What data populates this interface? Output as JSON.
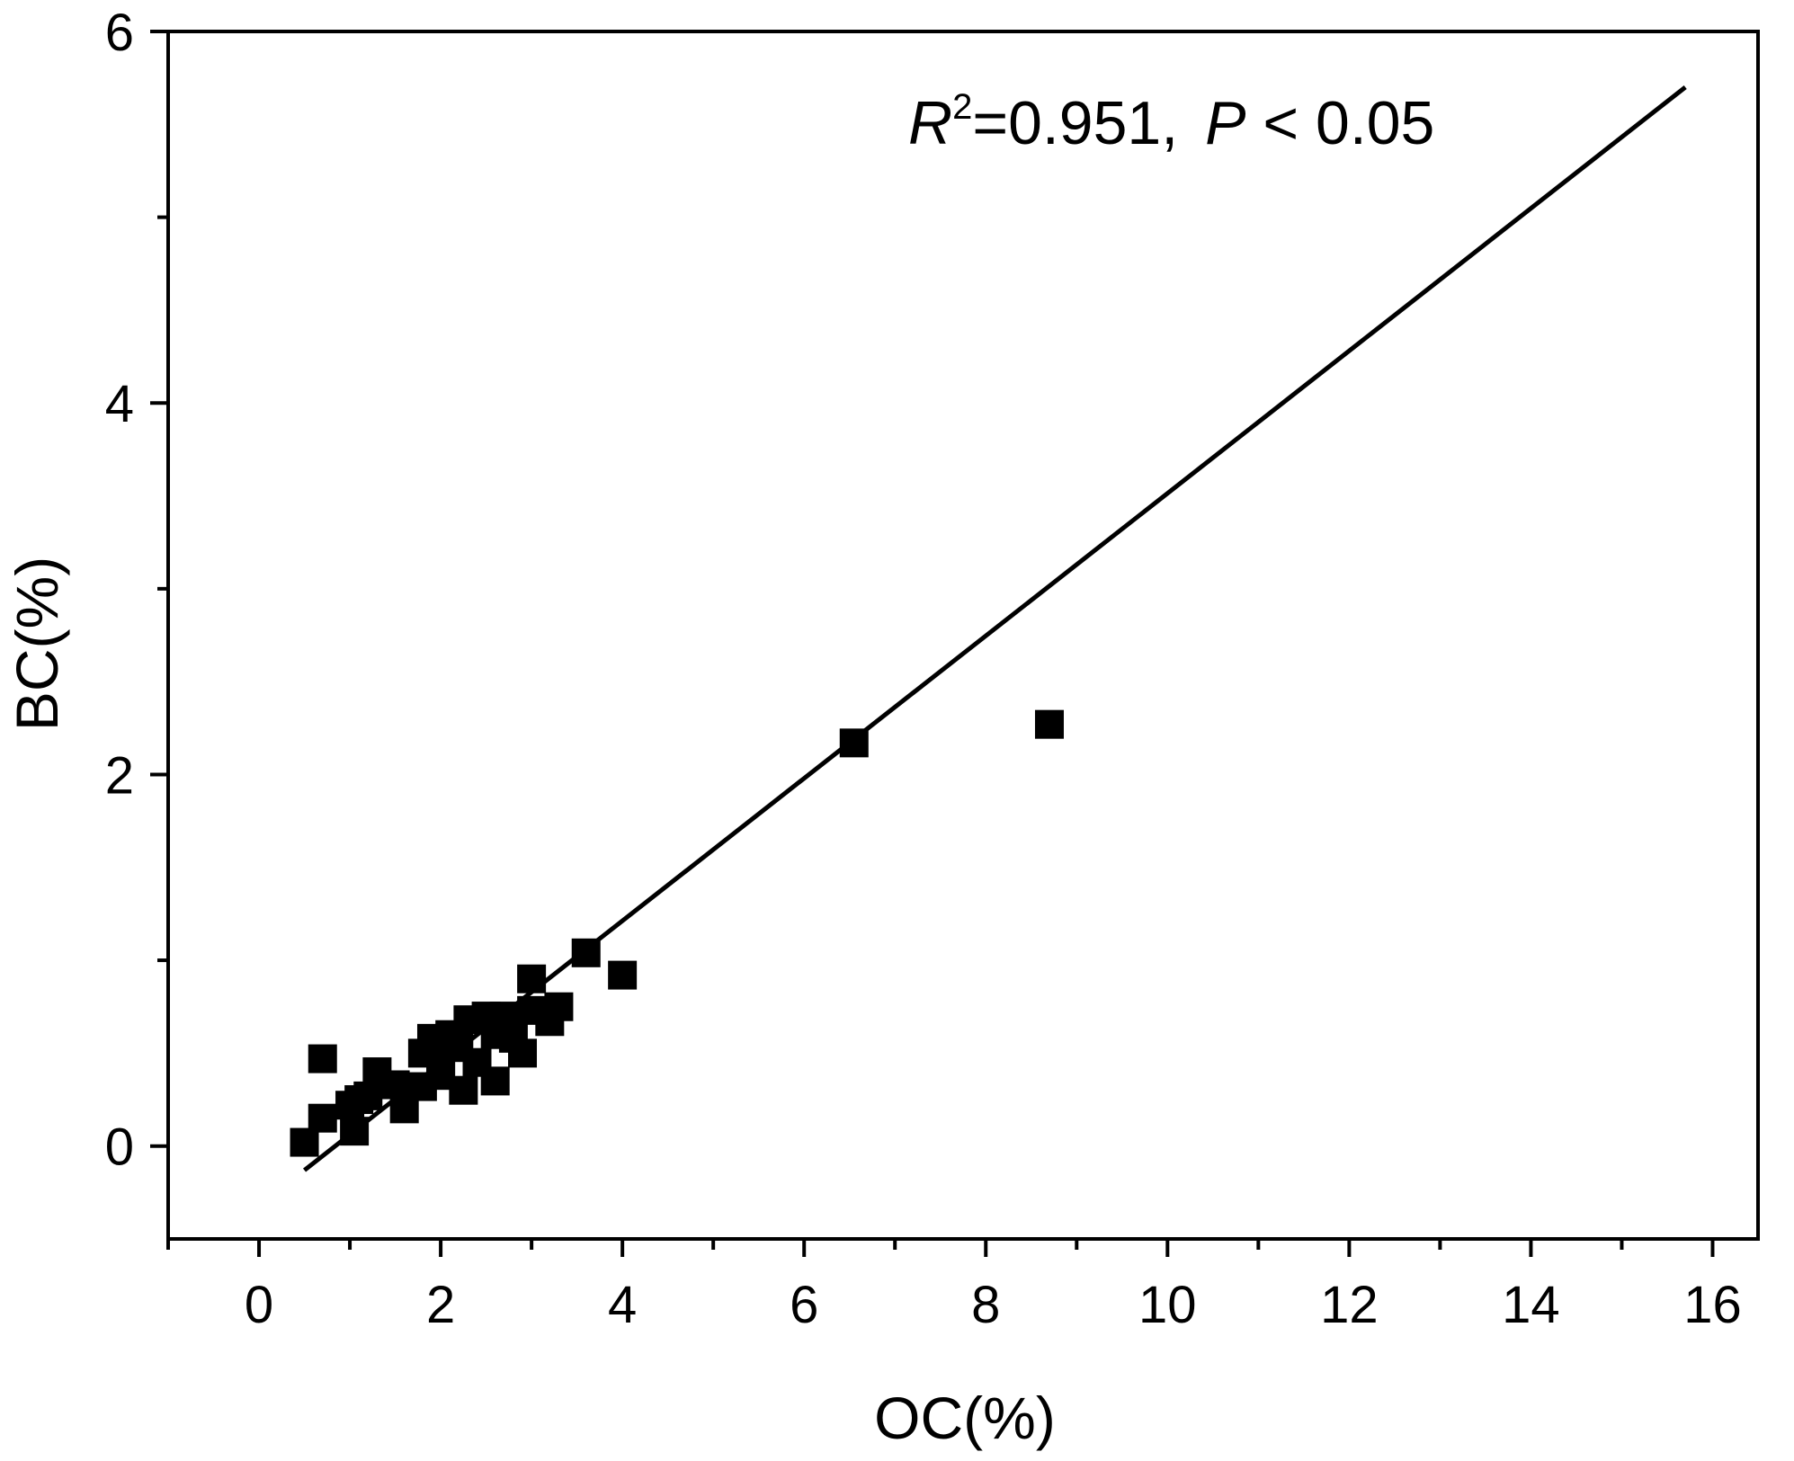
{
  "chart_data": {
    "type": "scatter",
    "xlabel": "OC(%)",
    "ylabel": "BC(%)",
    "xlim": [
      -1,
      16.5
    ],
    "ylim": [
      -0.5,
      6
    ],
    "xticks": [
      0,
      2,
      4,
      6,
      8,
      10,
      12,
      14,
      16
    ],
    "yticks": [
      0,
      2,
      4,
      6
    ],
    "xtick_labels": [
      "0",
      "2",
      "4",
      "6",
      "8",
      "10",
      "12",
      "14",
      "16"
    ],
    "ytick_labels": [
      "0",
      "2",
      "4",
      "6"
    ],
    "x_minor_ticks": [
      -1,
      1,
      3,
      5,
      7,
      9,
      11,
      13,
      15
    ],
    "y_minor_ticks": [
      1,
      3,
      5
    ],
    "grid": false,
    "marker": "square",
    "marker_color": "#000000",
    "annotation": {
      "r_symbol": "R",
      "r_exponent": "2",
      "r_value": "=0.951,",
      "p_symbol": "P",
      "p_value": " < 0.05"
    },
    "fit_line": {
      "x": [
        0.5,
        15.7
      ],
      "y": [
        -0.13,
        5.7
      ]
    },
    "points": [
      {
        "x": 0.5,
        "y": 0.02
      },
      {
        "x": 0.7,
        "y": 0.47
      },
      {
        "x": 0.7,
        "y": 0.15
      },
      {
        "x": 1.0,
        "y": 0.22
      },
      {
        "x": 1.05,
        "y": 0.08
      },
      {
        "x": 1.1,
        "y": 0.25
      },
      {
        "x": 1.2,
        "y": 0.27
      },
      {
        "x": 1.3,
        "y": 0.4
      },
      {
        "x": 1.5,
        "y": 0.33
      },
      {
        "x": 1.6,
        "y": 0.2
      },
      {
        "x": 1.8,
        "y": 0.5
      },
      {
        "x": 1.8,
        "y": 0.32
      },
      {
        "x": 1.9,
        "y": 0.58
      },
      {
        "x": 2.0,
        "y": 0.45
      },
      {
        "x": 2.0,
        "y": 0.38
      },
      {
        "x": 2.1,
        "y": 0.6
      },
      {
        "x": 2.2,
        "y": 0.53
      },
      {
        "x": 2.25,
        "y": 0.3
      },
      {
        "x": 2.3,
        "y": 0.68
      },
      {
        "x": 2.4,
        "y": 0.45
      },
      {
        "x": 2.5,
        "y": 0.7
      },
      {
        "x": 2.6,
        "y": 0.6
      },
      {
        "x": 2.6,
        "y": 0.35
      },
      {
        "x": 2.7,
        "y": 0.7
      },
      {
        "x": 2.8,
        "y": 0.58
      },
      {
        "x": 2.9,
        "y": 0.5
      },
      {
        "x": 3.0,
        "y": 0.9
      },
      {
        "x": 3.0,
        "y": 0.73
      },
      {
        "x": 3.2,
        "y": 0.67
      },
      {
        "x": 3.3,
        "y": 0.75
      },
      {
        "x": 3.6,
        "y": 1.04
      },
      {
        "x": 4.0,
        "y": 0.92
      },
      {
        "x": 6.55,
        "y": 2.17
      },
      {
        "x": 8.7,
        "y": 2.27
      }
    ]
  }
}
